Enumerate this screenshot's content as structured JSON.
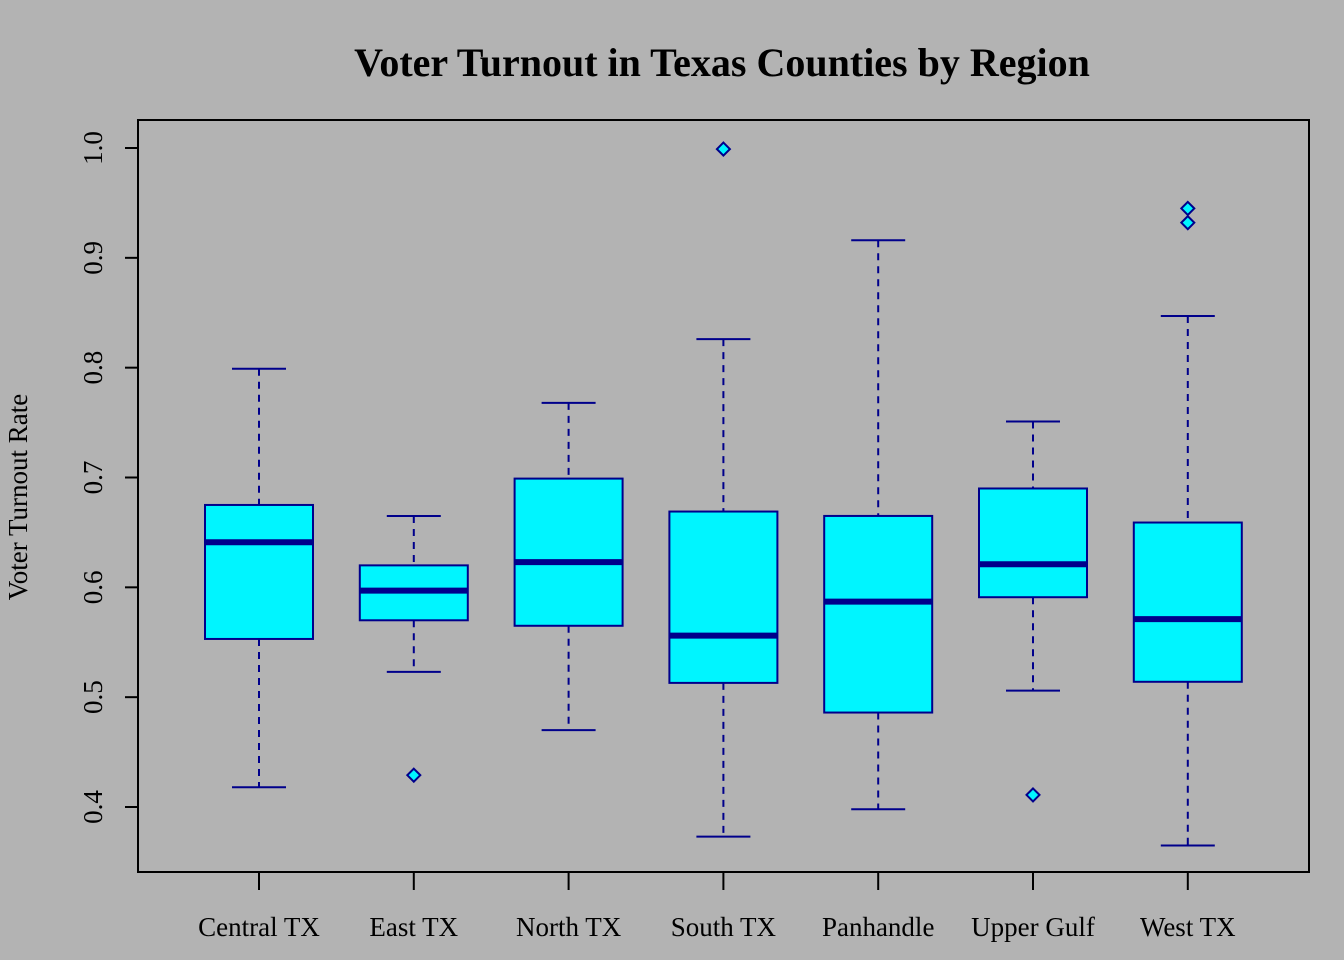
{
  "chart_data": {
    "type": "boxplot",
    "title": "Voter Turnout in Texas Counties by Region",
    "xlabel": "",
    "ylabel": "Voter Turnout Rate",
    "ylim": [
      0.36,
      1.03
    ],
    "yticks": [
      0.4,
      0.5,
      0.6,
      0.7,
      0.8,
      0.9,
      1.0
    ],
    "ytick_labels": [
      "0.4",
      "0.5",
      "0.6",
      "0.7",
      "0.8",
      "0.9",
      "1.0"
    ],
    "categories": [
      "Central TX",
      "East TX",
      "North TX",
      "South TX",
      "Panhandle",
      "Upper Gulf",
      "West TX"
    ],
    "boxes": [
      {
        "category": "Central TX",
        "whisker_low": 0.418,
        "q1": 0.553,
        "median": 0.641,
        "q3": 0.675,
        "whisker_high": 0.799,
        "outliers": []
      },
      {
        "category": "East TX",
        "whisker_low": 0.523,
        "q1": 0.57,
        "median": 0.597,
        "q3": 0.62,
        "whisker_high": 0.665,
        "outliers": [
          0.429
        ]
      },
      {
        "category": "North TX",
        "whisker_low": 0.47,
        "q1": 0.565,
        "median": 0.623,
        "q3": 0.699,
        "whisker_high": 0.768,
        "outliers": []
      },
      {
        "category": "South TX",
        "whisker_low": 0.373,
        "q1": 0.513,
        "median": 0.556,
        "q3": 0.669,
        "whisker_high": 0.826,
        "outliers": [
          0.999
        ]
      },
      {
        "category": "Panhandle",
        "whisker_low": 0.398,
        "q1": 0.486,
        "median": 0.587,
        "q3": 0.665,
        "whisker_high": 0.916,
        "outliers": []
      },
      {
        "category": "Upper Gulf",
        "whisker_low": 0.506,
        "q1": 0.591,
        "median": 0.621,
        "q3": 0.69,
        "whisker_high": 0.751,
        "outliers": [
          0.411
        ]
      },
      {
        "category": "West TX",
        "whisker_low": 0.365,
        "q1": 0.514,
        "median": 0.571,
        "q3": 0.659,
        "whisker_high": 0.847,
        "outliers": [
          0.932,
          0.945
        ]
      }
    ],
    "colors": {
      "background": "#b3b3b3",
      "box_fill": "#00f5ff",
      "box_border": "#00008b",
      "median": "#00008b",
      "whisker": "#00008b",
      "outlier_fill": "#00f5ff",
      "outlier_border": "#00008b",
      "frame": "#000000"
    },
    "grid": false,
    "legend": "none"
  }
}
